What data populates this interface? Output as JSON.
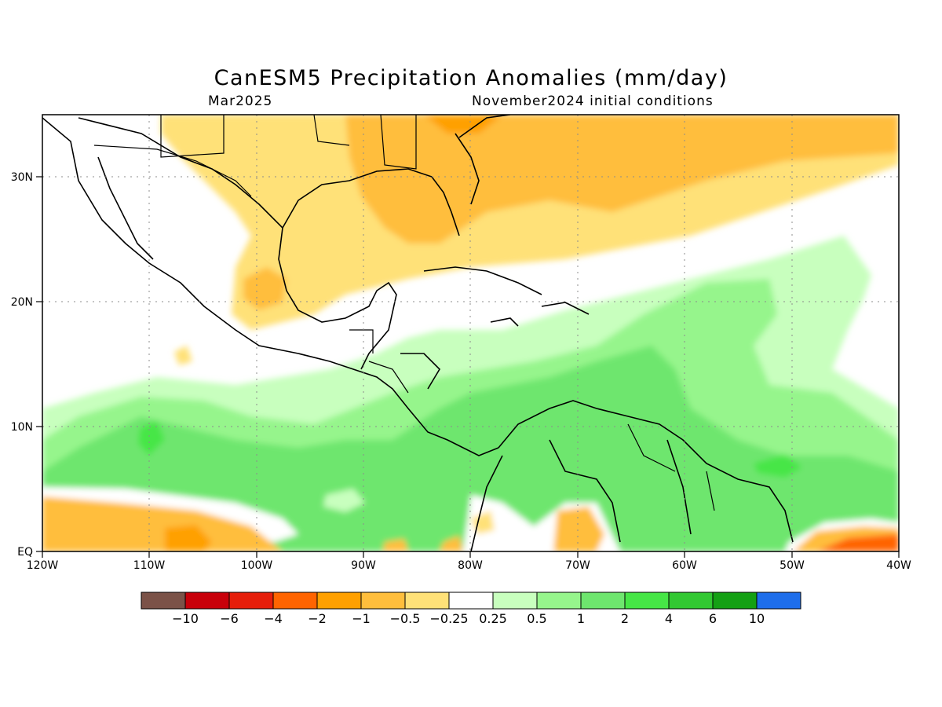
{
  "title": "CanESM5 Precipitation Anomalies (mm/day)",
  "valid_month": "Mar2025",
  "init_conditions": "November2024 initial conditions",
  "map": {
    "lon_ticks": [
      "120W",
      "110W",
      "100W",
      "90W",
      "80W",
      "70W",
      "60W",
      "50W",
      "40W"
    ],
    "lat_ticks": [
      "EQ",
      "10N",
      "20N",
      "30N"
    ],
    "lon_range": [
      -120,
      -40
    ],
    "lat_range": [
      0,
      35
    ]
  },
  "colorbar": {
    "colors": [
      "#7b5248",
      "#c8000a",
      "#e61e0a",
      "#ff6400",
      "#ffa000",
      "#ffbe3c",
      "#ffe178",
      "#ffffff",
      "#c8ffbe",
      "#96f58c",
      "#6ee66e",
      "#46e646",
      "#32c832",
      "#14a014",
      "#1e6eeb"
    ],
    "labels": [
      "−10",
      "−6",
      "−4",
      "−2",
      "−1",
      "−0.5",
      "−0.25",
      "0.25",
      "0.5",
      "1",
      "2",
      "4",
      "6",
      "10"
    ]
  }
}
